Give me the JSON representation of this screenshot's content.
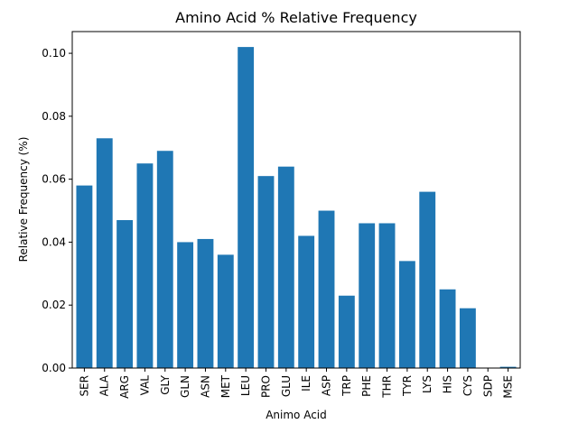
{
  "chart_data": {
    "type": "bar",
    "title": "Amino Acid % Relative Frequency",
    "xlabel": "Animo Acid",
    "ylabel": "Relative Frequency (%)",
    "ylim": [
      0,
      0.1069
    ],
    "yticks": [
      0.0,
      0.02,
      0.04,
      0.06,
      0.08,
      0.1
    ],
    "ytick_labels": [
      "0.00",
      "0.02",
      "0.04",
      "0.06",
      "0.08",
      "0.10"
    ],
    "grid": false,
    "bar_color": "#1f77b4",
    "categories": [
      "SER",
      "ALA",
      "ARG",
      "VAL",
      "GLY",
      "GLN",
      "ASN",
      "MET",
      "LEU",
      "PRO",
      "GLU",
      "ILE",
      "ASP",
      "TRP",
      "PHE",
      "THR",
      "TYR",
      "LYS",
      "HIS",
      "CYS",
      "SDP",
      "MSE"
    ],
    "values": [
      0.058,
      0.073,
      0.047,
      0.065,
      0.069,
      0.04,
      0.041,
      0.036,
      0.102,
      0.061,
      0.064,
      0.042,
      0.05,
      0.023,
      0.046,
      0.046,
      0.034,
      0.056,
      0.025,
      0.019,
      0.0,
      0.0004
    ]
  }
}
